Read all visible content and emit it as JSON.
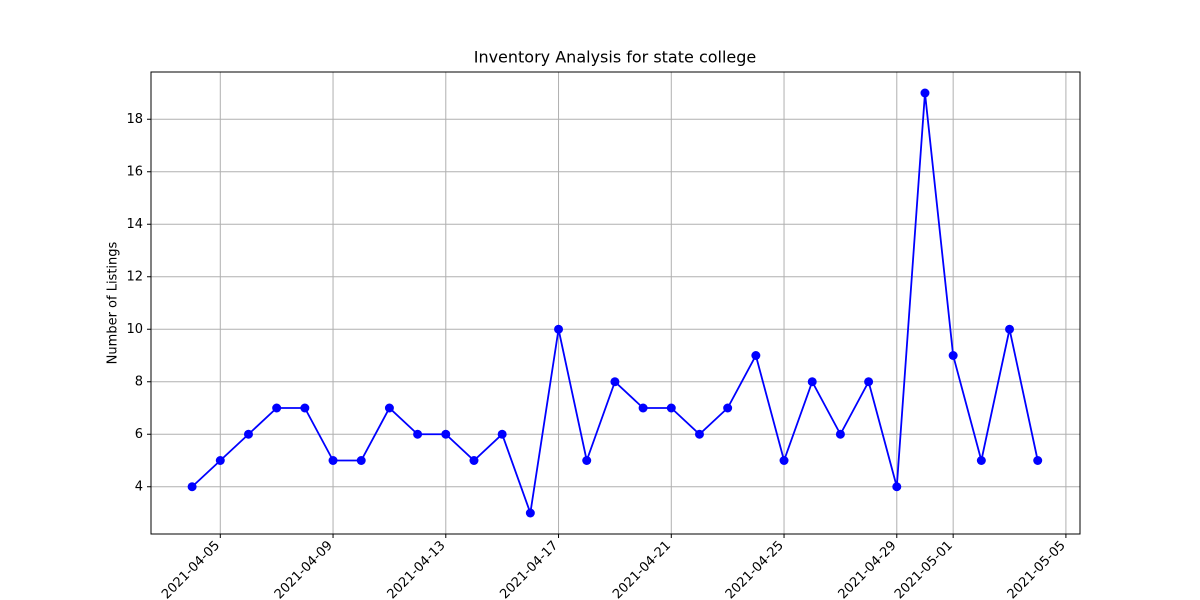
{
  "chart_data": {
    "type": "line",
    "title": "Inventory Analysis for state college",
    "y_label": "Number of Listings",
    "x": [
      "2021-04-04",
      "2021-04-05",
      "2021-04-06",
      "2021-04-07",
      "2021-04-08",
      "2021-04-09",
      "2021-04-10",
      "2021-04-11",
      "2021-04-12",
      "2021-04-13",
      "2021-04-14",
      "2021-04-15",
      "2021-04-16",
      "2021-04-17",
      "2021-04-18",
      "2021-04-19",
      "2021-04-20",
      "2021-04-21",
      "2021-04-22",
      "2021-04-23",
      "2021-04-24",
      "2021-04-25",
      "2021-04-26",
      "2021-04-27",
      "2021-04-28",
      "2021-04-29",
      "2021-04-30",
      "2021-05-01",
      "2021-05-02",
      "2021-05-03",
      "2021-05-04"
    ],
    "series": [
      {
        "name": "Listings",
        "color": "#0000ff",
        "values": [
          4,
          5,
          6,
          7,
          7,
          5,
          5,
          7,
          6,
          6,
          5,
          6,
          3,
          10,
          5,
          8,
          7,
          7,
          6,
          7,
          9,
          5,
          8,
          6,
          8,
          4,
          19,
          9,
          5,
          10,
          5
        ]
      }
    ],
    "xlim": [
      "2021-04-02T13:00",
      "2021-05-05T12:00"
    ],
    "xticks": [
      "2021-04-05",
      "2021-04-09",
      "2021-04-13",
      "2021-04-17",
      "2021-04-21",
      "2021-04-25",
      "2021-04-29",
      "2021-05-01",
      "2021-05-05"
    ],
    "ylim": [
      2.2,
      19.8
    ],
    "yticks": [
      4,
      6,
      8,
      10,
      12,
      14,
      16,
      18
    ],
    "grid": true
  }
}
